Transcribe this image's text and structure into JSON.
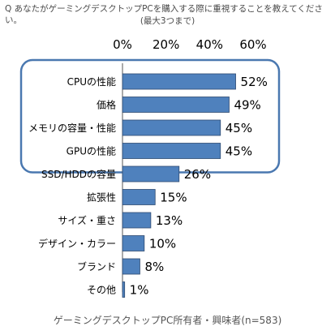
{
  "header": {
    "question": "Q あなたがゲーミングデスクトップPCを購入する際に重視することを教えてください。",
    "subtitle": "(最大3つまで)"
  },
  "footnote": "ゲーミングデスクトップPC所有者・興味者(n=583)",
  "chart_data": {
    "type": "bar",
    "orientation": "horizontal",
    "categories": [
      "CPUの性能",
      "価格",
      "メモリの容量・性能",
      "GPUの性能",
      "SSD/HDDの容量",
      "拡張性",
      "サイズ・重さ",
      "デザイン・カラー",
      "ブランド",
      "その他"
    ],
    "values": [
      52,
      49,
      45,
      45,
      26,
      15,
      13,
      10,
      8,
      1
    ],
    "value_suffix": "%",
    "xlim": [
      0,
      60
    ],
    "xticks": [
      0,
      20,
      40,
      60
    ],
    "xtick_labels": [
      "0%",
      "20%",
      "40%",
      "60%"
    ],
    "axis_position": "top",
    "grid": false,
    "bar_color": "#4f81bd",
    "bar_edge_color": "#2e4a70",
    "highlight": {
      "categories": [
        "CPUの性能",
        "価格",
        "メモリの容量・性能",
        "GPUの性能"
      ],
      "color": "#4a78b0"
    }
  }
}
